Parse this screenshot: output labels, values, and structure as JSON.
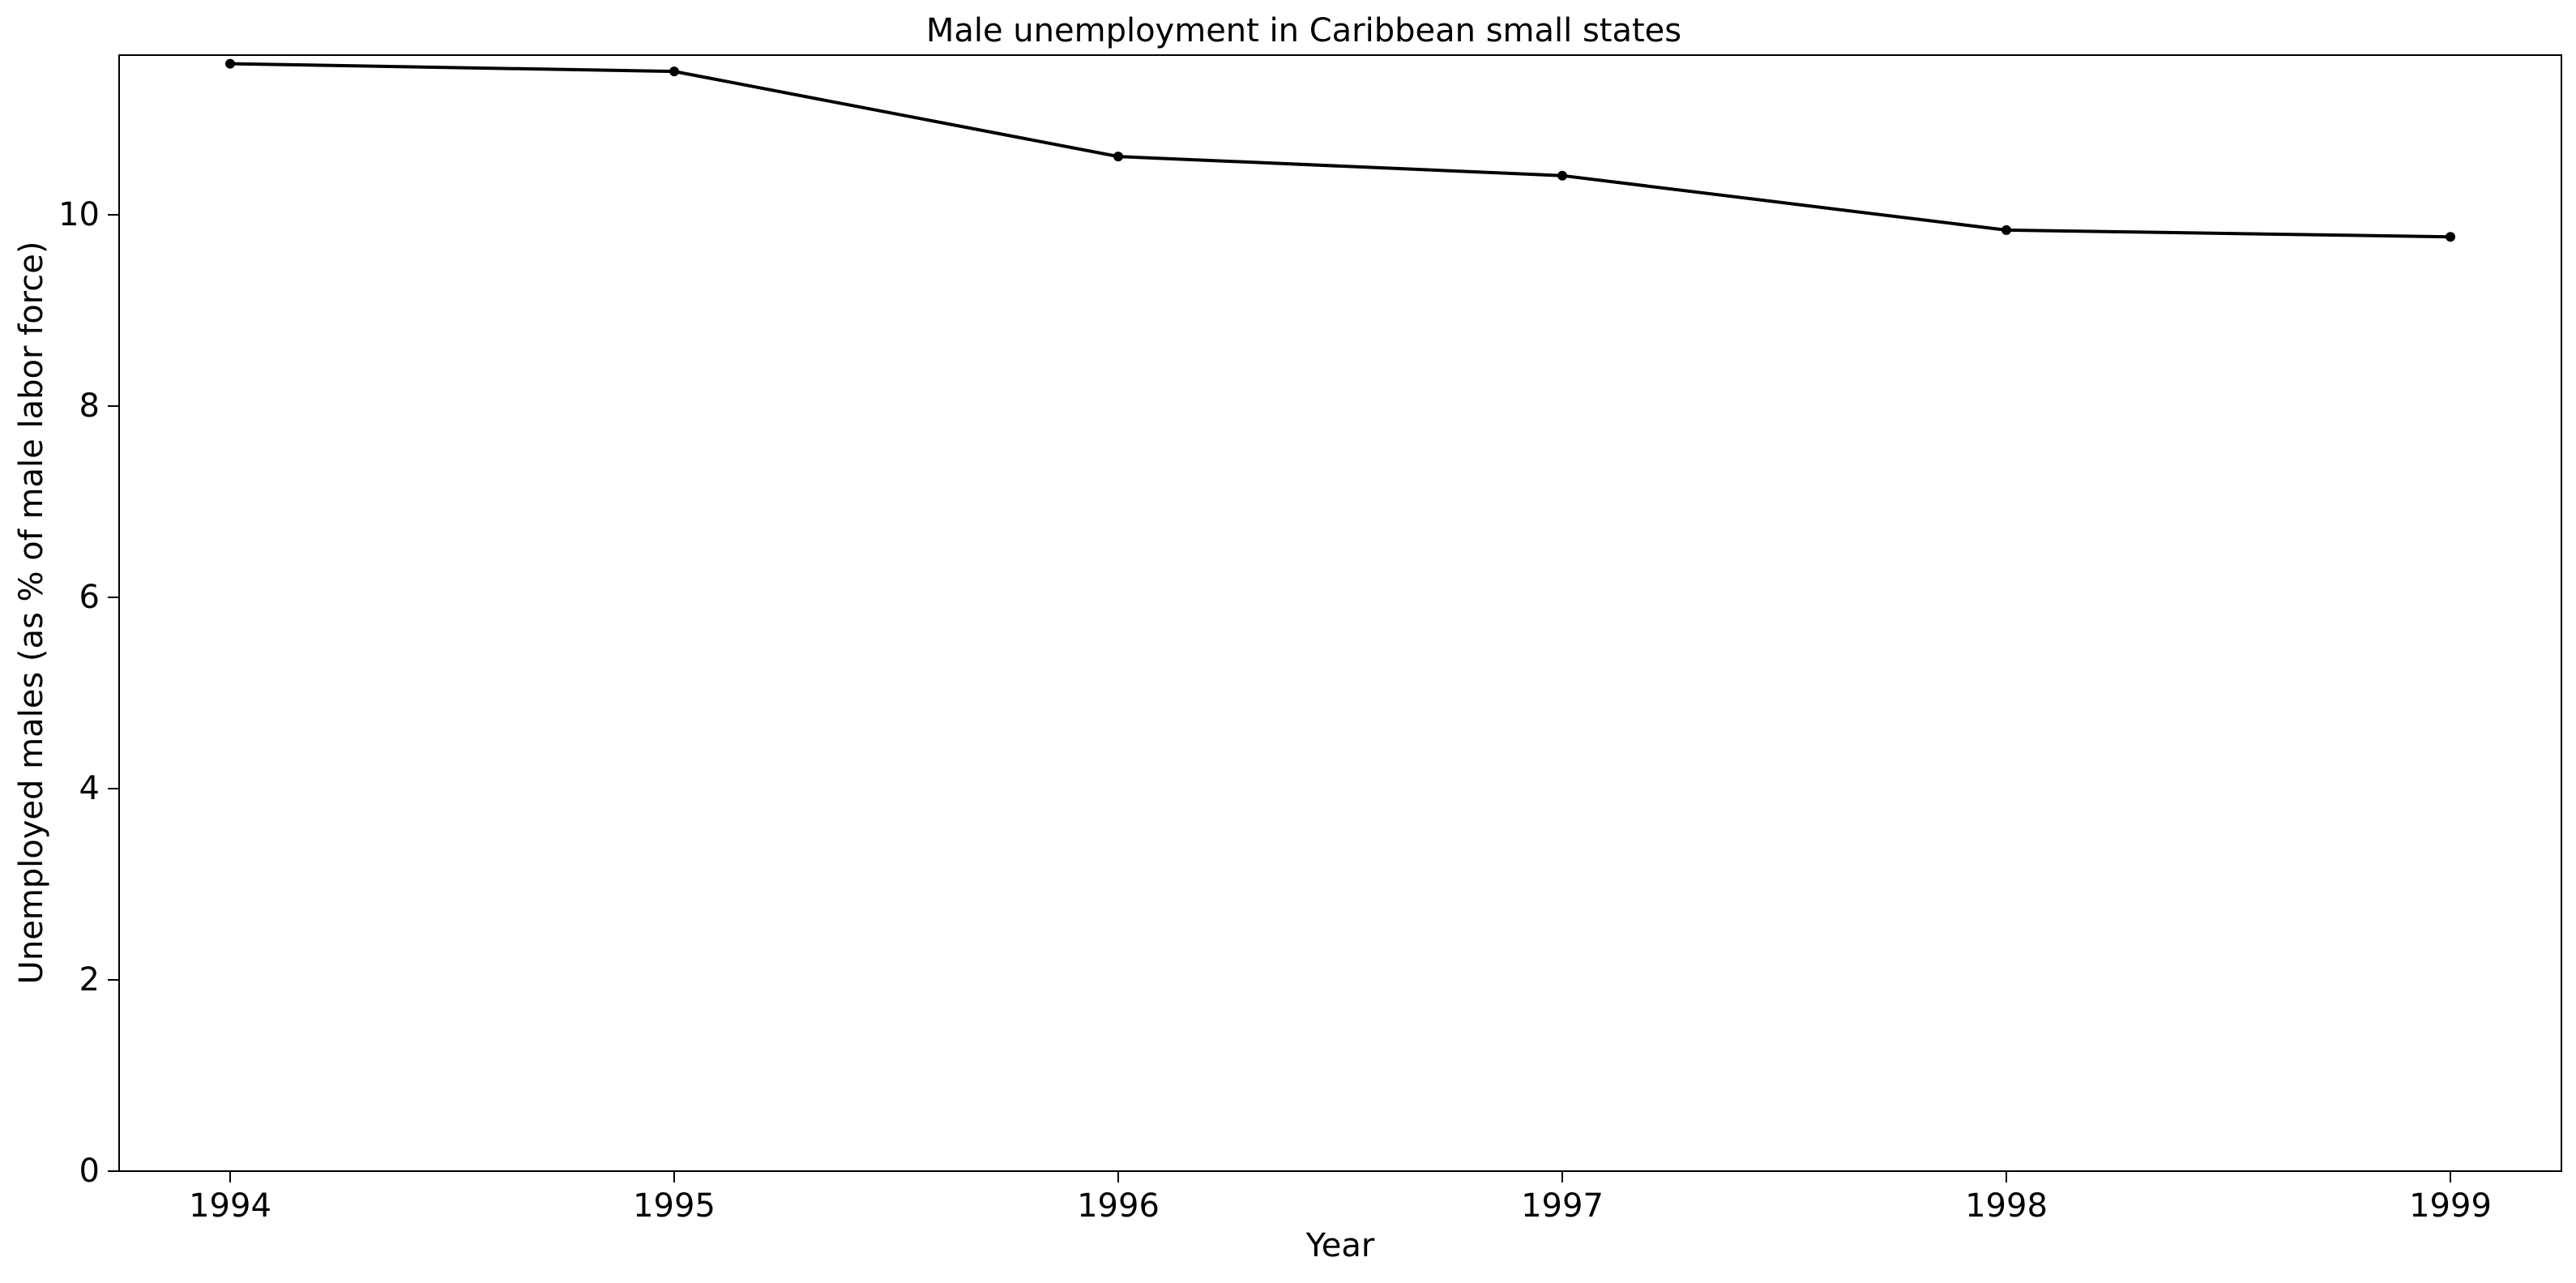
{
  "chart_data": {
    "type": "line",
    "title": "Male unemployment in Caribbean small states",
    "xlabel": "Year",
    "ylabel": "Unemployed males (as % of male labor force)",
    "x": [
      "1994",
      "1995",
      "1996",
      "1997",
      "1998",
      "1999"
    ],
    "series": [
      {
        "values": [
          11.58,
          11.5,
          10.61,
          10.41,
          9.84,
          9.77
        ],
        "color": "#000000",
        "marker": "dot"
      }
    ],
    "xlim": [
      1993.75,
      1999.25
    ],
    "ylim": [
      0,
      11.67
    ],
    "yticks": [
      0,
      2,
      4,
      6,
      8,
      10
    ],
    "ytick_labels": [
      "0",
      "2",
      "4",
      "6",
      "8",
      "10"
    ],
    "grid": false,
    "legend": "none"
  }
}
